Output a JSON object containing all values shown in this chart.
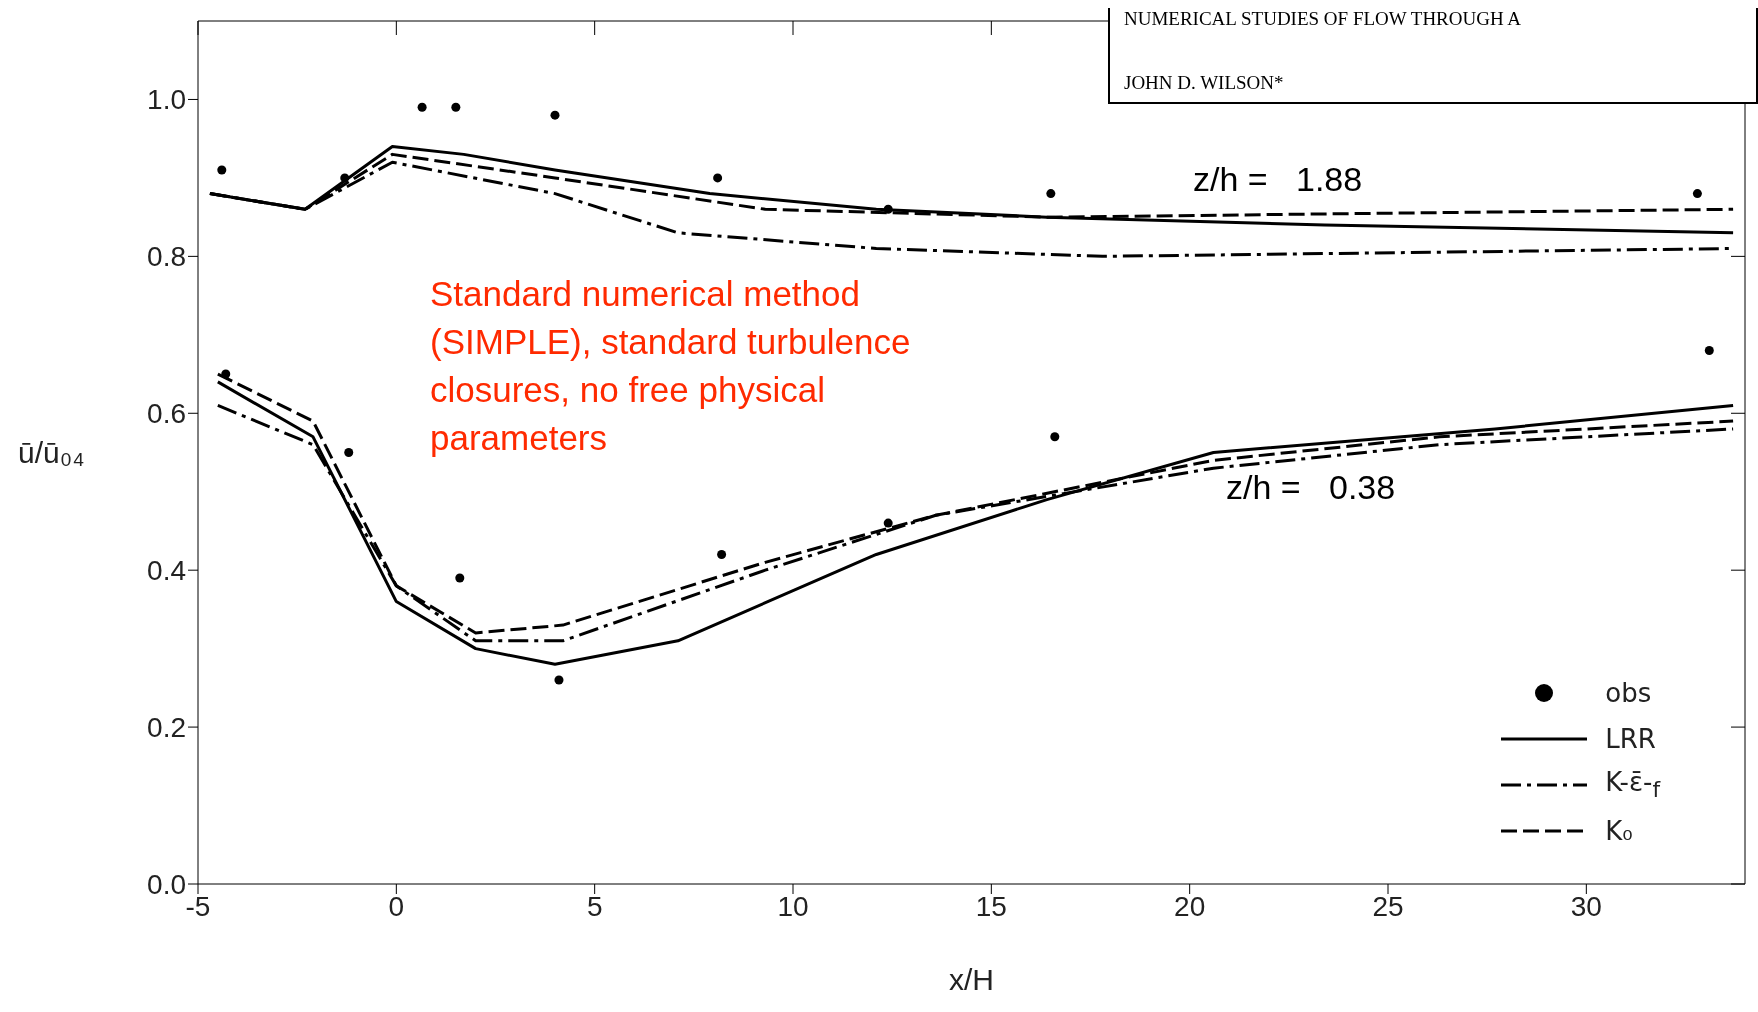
{
  "chart_data": {
    "type": "line",
    "xlabel": "x/H",
    "ylabel": "ū/ū₀₄",
    "xlim": [
      -5,
      34
    ],
    "xticks": [
      -5,
      0,
      5,
      10,
      15,
      20,
      25,
      30
    ],
    "ylim": [
      0,
      1.1
    ],
    "yticks": [
      {
        "value": 0,
        "label": "0.0"
      },
      {
        "value": 0.2,
        "label": "0.2"
      },
      {
        "value": 0.4,
        "label": "0.4"
      },
      {
        "value": 0.6,
        "label": "0.6"
      },
      {
        "value": 0.8,
        "label": "0.8"
      },
      {
        "value": 1,
        "label": "1.0"
      }
    ],
    "grid": false,
    "legend": "bottom right",
    "series": [
      {
        "name": "obs",
        "type": "scatter",
        "color": "#000000",
        "marker": "circle",
        "x": [
          -4.4,
          -1.3,
          0.65,
          1.5,
          4.0,
          8.1,
          12.4,
          16.5,
          32.8,
          -4.3,
          -1.2,
          1.6,
          4.1,
          8.2,
          12.4,
          16.6,
          33.1
        ],
        "values": [
          0.91,
          0.9,
          0.99,
          0.99,
          0.98,
          0.9,
          0.86,
          0.88,
          0.88,
          0.65,
          0.55,
          0.39,
          0.26,
          0.42,
          0.46,
          0.57,
          0.68
        ]
      },
      {
        "name": "LRR",
        "color": "#000000",
        "line_style": "solid",
        "x": [
          -4.7,
          -2.3,
          -0.1,
          1.7,
          4.0,
          7.9,
          12.1,
          16.4,
          23.4,
          33.7
        ],
        "values": [
          0.88,
          0.86,
          0.94,
          0.93,
          0.91,
          0.88,
          0.86,
          0.85,
          0.84,
          0.83
        ]
      },
      {
        "name": "K-ε̄-$_{f}$",
        "color": "#000000",
        "line_style": "dashdot",
        "x": [
          -4.7,
          -2.3,
          -0.1,
          4.0,
          7.1,
          12.1,
          17.8,
          33.7
        ],
        "values": [
          0.88,
          0.86,
          0.92,
          0.88,
          0.83,
          0.81,
          0.8,
          0.81
        ]
      },
      {
        "name": "K₀",
        "color": "#000000",
        "line_style": "dashed",
        "x": [
          -4.7,
          -2.3,
          -0.1,
          4.0,
          9.3,
          16.4,
          33.7
        ],
        "values": [
          0.88,
          0.86,
          0.93,
          0.9,
          0.86,
          0.85,
          0.86
        ]
      },
      {
        "color": "#000000",
        "line_style": "solid",
        "x": [
          -4.5,
          -2.1,
          0,
          2.0,
          4.0,
          7.1,
          12.1,
          16.4,
          20.6,
          27.7,
          33.7
        ],
        "values": [
          0.64,
          0.57,
          0.36,
          0.3,
          0.28,
          0.31,
          0.42,
          0.49,
          0.55,
          0.58,
          0.61
        ]
      },
      {
        "color": "#000000",
        "line_style": "dashdot",
        "x": [
          -4.5,
          -2.1,
          0,
          2.0,
          4.2,
          9.3,
          13.6,
          20.6,
          26.3,
          33.7
        ],
        "values": [
          0.61,
          0.56,
          0.38,
          0.31,
          0.31,
          0.4,
          0.47,
          0.53,
          0.56,
          0.58
        ]
      },
      {
        "color": "#000000",
        "line_style": "dashed",
        "x": [
          -4.5,
          -2.1,
          0,
          2.0,
          4.2,
          9.3,
          13.6,
          20.6,
          26.3,
          33.7
        ],
        "values": [
          0.65,
          0.59,
          0.38,
          0.32,
          0.33,
          0.41,
          0.47,
          0.54,
          0.57,
          0.59
        ]
      }
    ],
    "annotations": [
      "z/h =   1.88",
      "z/h =   0.38",
      "Standard numerical method (SIMPLE), standard turbulence closures, no free physical parameters",
      "NUMERICAL STUDIES OF FLOW THROUGH A",
      "JOHN D. WILSON*"
    ]
  }
}
